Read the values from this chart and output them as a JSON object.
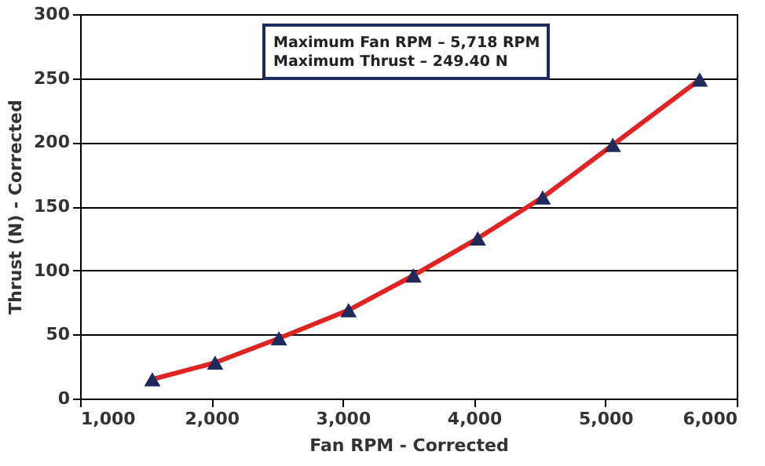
{
  "chart_data": {
    "type": "line",
    "xlabel": "Fan RPM - Corrected",
    "ylabel": "Thrust (N) - Corrected",
    "annotations": [
      "Maximum Fan RPM – 5,718 RPM",
      "Maximum Thrust – 249.40 N"
    ],
    "x": [
      1550,
      2028,
      2514,
      3044,
      3538,
      4028,
      4522,
      5056,
      5718
    ],
    "series": [
      {
        "color": "#e02424",
        "values": [
          15,
          28,
          47,
          69,
          96,
          125,
          157,
          198,
          249
        ]
      }
    ],
    "marker": "triangle",
    "line_style": "solid",
    "xlim": [
      1000,
      6000
    ],
    "xticks": [
      {
        "value": 1000,
        "label": "1,000"
      },
      {
        "value": 2000,
        "label": "2,000"
      },
      {
        "value": 3000,
        "label": "3,000"
      },
      {
        "value": 4000,
        "label": "4,000"
      },
      {
        "value": 5000,
        "label": "5,000"
      },
      {
        "value": 6000,
        "label": "6,000"
      }
    ],
    "ylim": [
      0,
      300
    ],
    "yticks": [
      0,
      50,
      100,
      150,
      200,
      250,
      300
    ],
    "grid": "y"
  }
}
